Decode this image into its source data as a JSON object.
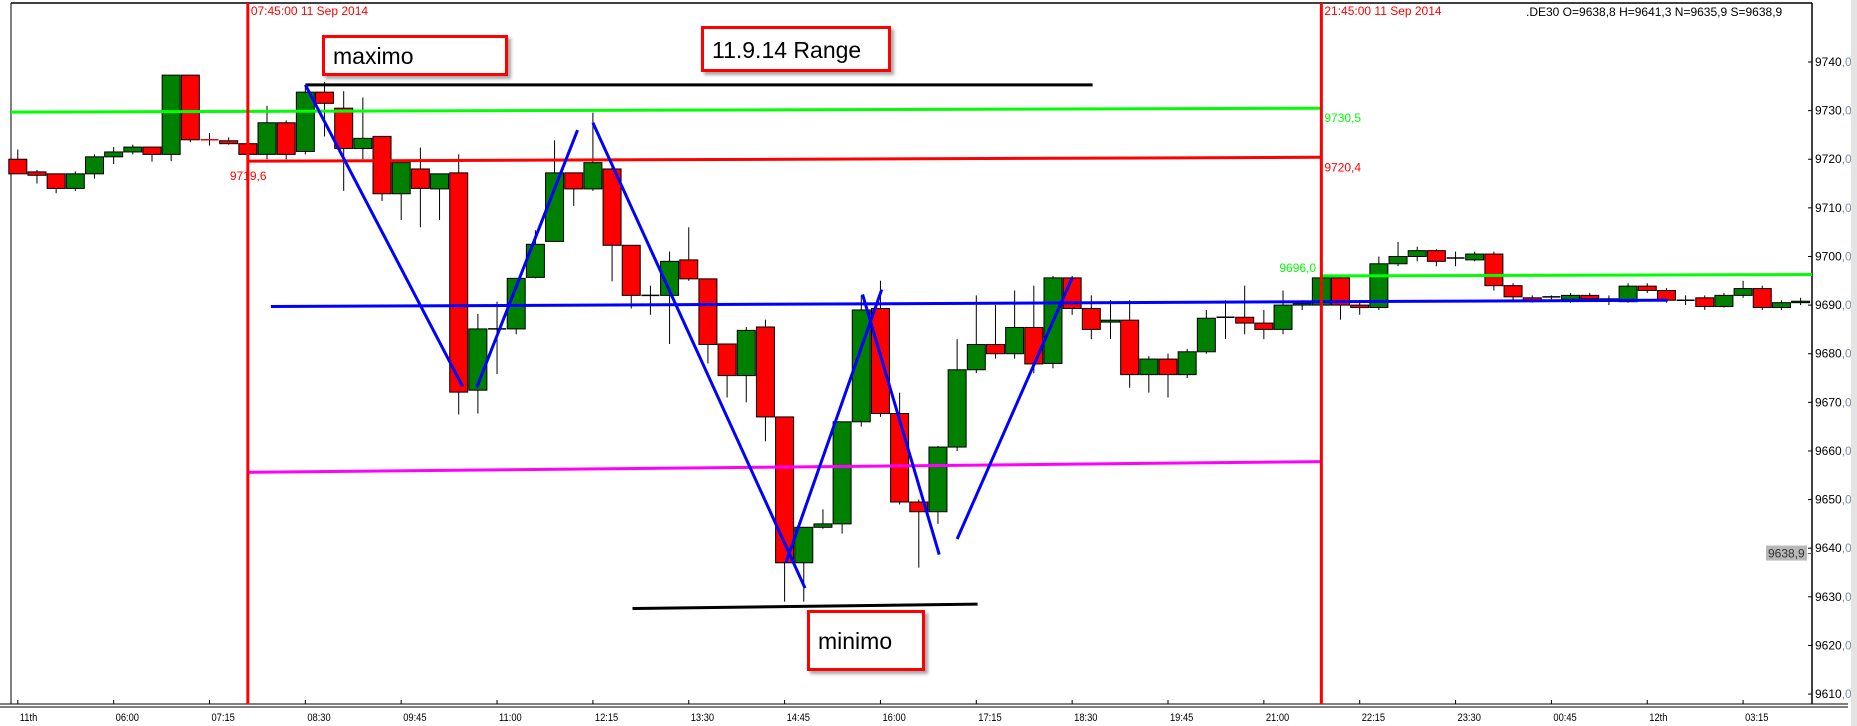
{
  "header": {
    "instrument_readout": ".DE30 O=9638,8 H=9641,3 N=9635,9 S=9638,9"
  },
  "colors": {
    "up": "#008000",
    "down": "#ff0000",
    "session_line": "#ff0000",
    "axis_text": "#000000",
    "decimal_text": "#7f8ea0"
  },
  "annotations": {
    "maximo": "maximo",
    "range_title": "11.9.14 Range",
    "minimo": "minimo"
  },
  "chart_data": {
    "type": "candlestick",
    "title": "11.9.14 Range",
    "interval": "15 min",
    "ylim": [
      9608,
      9748
    ],
    "y_ticks": [
      "9740,0",
      "9730,0",
      "9720,0",
      "9710,0",
      "9700,0",
      "9690,0",
      "9680,0",
      "9670,0",
      "9660,0",
      "9650,0",
      "9640,0",
      "9630,0",
      "9620,0",
      "9610,0"
    ],
    "y_tick_values": [
      9740,
      9730,
      9720,
      9710,
      9700,
      9690,
      9680,
      9670,
      9660,
      9650,
      9640,
      9630,
      9620,
      9610
    ],
    "x_ticks": [
      {
        "t": "04:45",
        "label": "11th"
      },
      {
        "t": "06:00",
        "label": "06:00"
      },
      {
        "t": "07:15",
        "label": "07:15"
      },
      {
        "t": "08:30",
        "label": "08:30"
      },
      {
        "t": "09:45",
        "label": "09:45"
      },
      {
        "t": "11:00",
        "label": "11:00"
      },
      {
        "t": "12:15",
        "label": "12:15"
      },
      {
        "t": "13:30",
        "label": "13:30"
      },
      {
        "t": "14:45",
        "label": "14:45"
      },
      {
        "t": "16:00",
        "label": "16:00"
      },
      {
        "t": "17:15",
        "label": "17:15"
      },
      {
        "t": "18:30",
        "label": "18:30"
      },
      {
        "t": "19:45",
        "label": "19:45"
      },
      {
        "t": "21:00",
        "label": "21:00"
      },
      {
        "t": "22:15",
        "label": "22:15"
      },
      {
        "t": "23:30",
        "label": "23:30"
      },
      {
        "t": "00:45",
        "label": "00:45"
      },
      {
        "t": "02:00",
        "label": "12th"
      },
      {
        "t": "03:15",
        "label": "03:15"
      }
    ],
    "current_price": {
      "value": 9638.9,
      "label": "9638,9"
    },
    "candles_columns": [
      "time",
      "open",
      "high",
      "low",
      "close"
    ],
    "candles": [
      [
        "04:45",
        9720,
        9722,
        9717,
        9717
      ],
      [
        "05:00",
        9717.4,
        9717.8,
        9715,
        9716.7
      ],
      [
        "05:15",
        9717,
        9717,
        9713,
        9714
      ],
      [
        "05:30",
        9714,
        9717.5,
        9713.5,
        9717
      ],
      [
        "05:45",
        9717,
        9721,
        9716,
        9720.5
      ],
      [
        "06:00",
        9720.5,
        9722.5,
        9719,
        9721.5
      ],
      [
        "06:15",
        9721.5,
        9723,
        9721,
        9722.5
      ],
      [
        "06:30",
        9722.5,
        9722.5,
        9719.5,
        9721
      ],
      [
        "06:45",
        9721,
        9737.3,
        9719.6,
        9737.3
      ],
      [
        "07:00",
        9737.3,
        9737.3,
        9723.5,
        9724
      ],
      [
        "07:15",
        9724,
        9725.4,
        9722.8,
        9723.8
      ],
      [
        "07:30",
        9723.8,
        9724.5,
        9723,
        9723.2
      ],
      [
        "07:45",
        9723.2,
        9723.5,
        9720.5,
        9721
      ],
      [
        "08:00",
        9721,
        9731,
        9720,
        9727.5
      ],
      [
        "08:15",
        9727.5,
        9728,
        9720,
        9721
      ],
      [
        "08:30",
        9721.6,
        9735,
        9721,
        9733.8
      ],
      [
        "08:45",
        9733.8,
        9735.9,
        9724.7,
        9731.5
      ],
      [
        "09:00",
        9730.5,
        9734,
        9713.5,
        9722.2
      ],
      [
        "09:15",
        9722.2,
        9732.7,
        9720,
        9724.3
      ],
      [
        "09:30",
        9724.7,
        9724.7,
        9711.4,
        9712.9
      ],
      [
        "09:45",
        9712.9,
        9719.3,
        9707.5,
        9719.3
      ],
      [
        "10:00",
        9718,
        9722.4,
        9706,
        9714
      ],
      [
        "10:15",
        9713.9,
        9717,
        9707.5,
        9717
      ],
      [
        "10:30",
        9717.2,
        9721,
        9667.5,
        9672.1
      ],
      [
        "10:45",
        9672.5,
        9688.2,
        9667.7,
        9685.1
      ],
      [
        "11:00",
        9685.1,
        9690.7,
        9675.8,
        9685.1
      ],
      [
        "11:15",
        9685.1,
        9695.5,
        9684,
        9695.5
      ],
      [
        "11:30",
        9695.7,
        9705.4,
        9695.5,
        9702.5
      ],
      [
        "11:45",
        9703.1,
        9723.9,
        9703,
        9717.2
      ],
      [
        "12:00",
        9717.2,
        9717.2,
        9710.4,
        9713.9
      ],
      [
        "12:15",
        9713.9,
        9729.6,
        9713.5,
        9719.3
      ],
      [
        "12:30",
        9718,
        9718.5,
        9694.9,
        9702.3
      ],
      [
        "12:45",
        9702.3,
        9702.3,
        9689.3,
        9692
      ],
      [
        "13:00",
        9692,
        9694,
        9688,
        9692
      ],
      [
        "13:15",
        9692,
        9701,
        9682,
        9699
      ],
      [
        "13:30",
        9699.3,
        9706,
        9695,
        9695.4
      ],
      [
        "13:45",
        9695.4,
        9695.4,
        9678,
        9681.9
      ],
      [
        "14:00",
        9682,
        9682,
        9671,
        9675.5
      ],
      [
        "14:15",
        9675.5,
        9685.5,
        9670,
        9684.8
      ],
      [
        "14:30",
        9685.5,
        9687,
        9662,
        9667
      ],
      [
        "14:45",
        9667,
        9667,
        9629,
        9637
      ],
      [
        "15:00",
        9637,
        9644.3,
        9629,
        9644.3
      ],
      [
        "15:15",
        9644.3,
        9648,
        9644,
        9645
      ],
      [
        "15:30",
        9645,
        9666,
        9643,
        9666
      ],
      [
        "15:45",
        9666,
        9692,
        9665,
        9689
      ],
      [
        "16:00",
        9689.3,
        9695,
        9667,
        9667.7
      ],
      [
        "16:15",
        9667.7,
        9672,
        9649,
        9649.5
      ],
      [
        "16:30",
        9649.5,
        9650,
        9636,
        9647.5
      ],
      [
        "16:45",
        9647.5,
        9661,
        9645,
        9660.8
      ],
      [
        "17:00",
        9660.8,
        9683,
        9660,
        9676.7
      ],
      [
        "17:15",
        9676.7,
        9692,
        9676,
        9681.9
      ],
      [
        "17:30",
        9681.9,
        9690,
        9679,
        9680
      ],
      [
        "17:45",
        9680,
        9693,
        9679,
        9685.4
      ],
      [
        "18:00",
        9685.4,
        9694,
        9676,
        9677.9
      ],
      [
        "18:15",
        9678,
        9696,
        9677,
        9695.6
      ],
      [
        "18:30",
        9695.6,
        9696,
        9688,
        9689.3
      ],
      [
        "18:45",
        9689.3,
        9692,
        9683,
        9685
      ],
      [
        "19:00",
        9686.5,
        9691,
        9683,
        9686.9
      ],
      [
        "19:15",
        9686.9,
        9691,
        9673,
        9675.7
      ],
      [
        "19:30",
        9675.7,
        9679.5,
        9672,
        9678.9
      ],
      [
        "19:45",
        9678.9,
        9680,
        9671,
        9675.7
      ],
      [
        "20:00",
        9675.7,
        9681,
        9675,
        9680.4
      ],
      [
        "20:15",
        9680.4,
        9689,
        9680,
        9687.3
      ],
      [
        "20:30",
        9687.5,
        9691,
        9683,
        9687.5
      ],
      [
        "20:45",
        9687.5,
        9694,
        9684,
        9686.3
      ],
      [
        "21:00",
        9686.3,
        9689,
        9683,
        9685
      ],
      [
        "21:15",
        9685,
        9693,
        9684,
        9690
      ],
      [
        "21:30",
        9690,
        9691,
        9689,
        9690.3
      ],
      [
        "21:45",
        9690,
        9697,
        9689,
        9695.6
      ],
      [
        "22:00",
        9695.6,
        9696,
        9687,
        9690
      ],
      [
        "22:15",
        9690,
        9691,
        9688,
        9689.5
      ],
      [
        "22:30",
        9689.5,
        9700,
        9689,
        9698.5
      ],
      [
        "22:45",
        9698.5,
        9703,
        9698,
        9700
      ],
      [
        "23:00",
        9700,
        9702,
        9699,
        9701.2
      ],
      [
        "23:15",
        9701.2,
        9701.5,
        9698,
        9699
      ],
      [
        "23:30",
        9699.7,
        9701,
        9698,
        9699.7
      ],
      [
        "23:45",
        9699.3,
        9701,
        9699,
        9700.5
      ],
      [
        "00:00",
        9700.5,
        9701,
        9693,
        9694
      ],
      [
        "00:15",
        9694,
        9694.5,
        9691,
        9691.7
      ],
      [
        "00:30",
        9691.5,
        9692,
        9690.5,
        9691
      ],
      [
        "00:45",
        9691.7,
        9692,
        9691,
        9691.7
      ],
      [
        "01:00",
        9691.2,
        9692.5,
        9690.5,
        9692
      ],
      [
        "01:15",
        9692,
        9692.5,
        9691,
        9691.3
      ],
      [
        "01:30",
        9691.3,
        9692,
        9690,
        9690.8
      ],
      [
        "01:45",
        9690.7,
        9694.5,
        9690.5,
        9693.9
      ],
      [
        "02:00",
        9693.9,
        9694.5,
        9692.5,
        9693
      ],
      [
        "02:15",
        9693,
        9693.5,
        9690.5,
        9691
      ],
      [
        "02:30",
        9691,
        9692,
        9690,
        9691
      ],
      [
        "02:45",
        9691.5,
        9692,
        9689,
        9689.7
      ],
      [
        "03:00",
        9689.7,
        9692.5,
        9689.5,
        9692
      ],
      [
        "03:15",
        9692,
        9695,
        9691.5,
        9693.4
      ],
      [
        "03:30",
        9693.4,
        9694,
        9689,
        9689.5
      ],
      [
        "03:45",
        9689.5,
        9691,
        9689,
        9690.5
      ],
      [
        "04:00",
        9690.5,
        9691.5,
        9690,
        9690.8
      ]
    ],
    "session_lines": [
      {
        "t": "07:45",
        "label": "07:45:00 11 Sep 2014"
      },
      {
        "t": "21:45",
        "label": "21:45:00 11 Sep 2014"
      }
    ],
    "drawings": [
      {
        "name": "range-high-green",
        "color": "#00ff00",
        "from": [
          "04:45",
          9729.7
        ],
        "to": [
          "21:45",
          9730.5
        ],
        "extend_left": true,
        "label_end": "9730,5"
      },
      {
        "name": "range-mid-red",
        "color": "#ff0000",
        "from": [
          "07:45",
          9719.6
        ],
        "to": [
          "21:45",
          9720.4
        ],
        "label_start": "9719,6",
        "label_end": "9720,4"
      },
      {
        "name": "pivot-blue",
        "color": "#0000ff",
        "from": [
          "08:03",
          9689.7
        ],
        "to": [
          "21:45",
          9690.7
        ]
      },
      {
        "name": "pivot-blue-ext",
        "color": "#0000ff",
        "from": [
          "21:45",
          9690.7
        ],
        "to": [
          "02:16",
          9691
        ]
      },
      {
        "name": "range-low-magenta",
        "color": "#ff00ff",
        "from": [
          "07:45",
          9655.6
        ],
        "to": [
          "21:45",
          9657.8
        ]
      },
      {
        "name": "next-green",
        "color": "#00ff00",
        "from": [
          "21:45",
          9696
        ],
        "to": [
          "04:00",
          9696.3
        ],
        "extend_right": true,
        "label_start_left": "9696,0"
      },
      {
        "name": "maximo-line",
        "color": "#000000",
        "from": [
          "08:30",
          9735.3
        ],
        "to": [
          "18:46",
          9735.3
        ]
      },
      {
        "name": "minimo-line",
        "color": "#000000",
        "from": [
          "12:46",
          9627.6
        ],
        "to": [
          "17:16",
          9628.5
        ]
      },
      {
        "name": "swing-1",
        "color": "#0000ff",
        "from": [
          "08:30",
          9735.3
        ],
        "to": [
          "10:33",
          9673.3
        ]
      },
      {
        "name": "swing-2",
        "color": "#0000ff",
        "from": [
          "10:44",
          9673.0
        ],
        "to": [
          "12:03",
          9726.0
        ]
      },
      {
        "name": "swing-3",
        "color": "#0000ff",
        "from": [
          "12:15",
          9727.5
        ],
        "to": [
          "15:01",
          9631.8
        ]
      },
      {
        "name": "swing-4",
        "color": "#0000ff",
        "from": [
          "14:46",
          9637
        ],
        "to": [
          "16:01",
          9693.2
        ]
      },
      {
        "name": "swing-5",
        "color": "#0000ff",
        "from": [
          "15:46",
          9692.2
        ],
        "to": [
          "16:46",
          9638.7
        ]
      },
      {
        "name": "swing-6",
        "color": "#0000ff",
        "from": [
          "17:00",
          9641.9
        ],
        "to": [
          "18:30",
          9695.6
        ]
      }
    ]
  }
}
